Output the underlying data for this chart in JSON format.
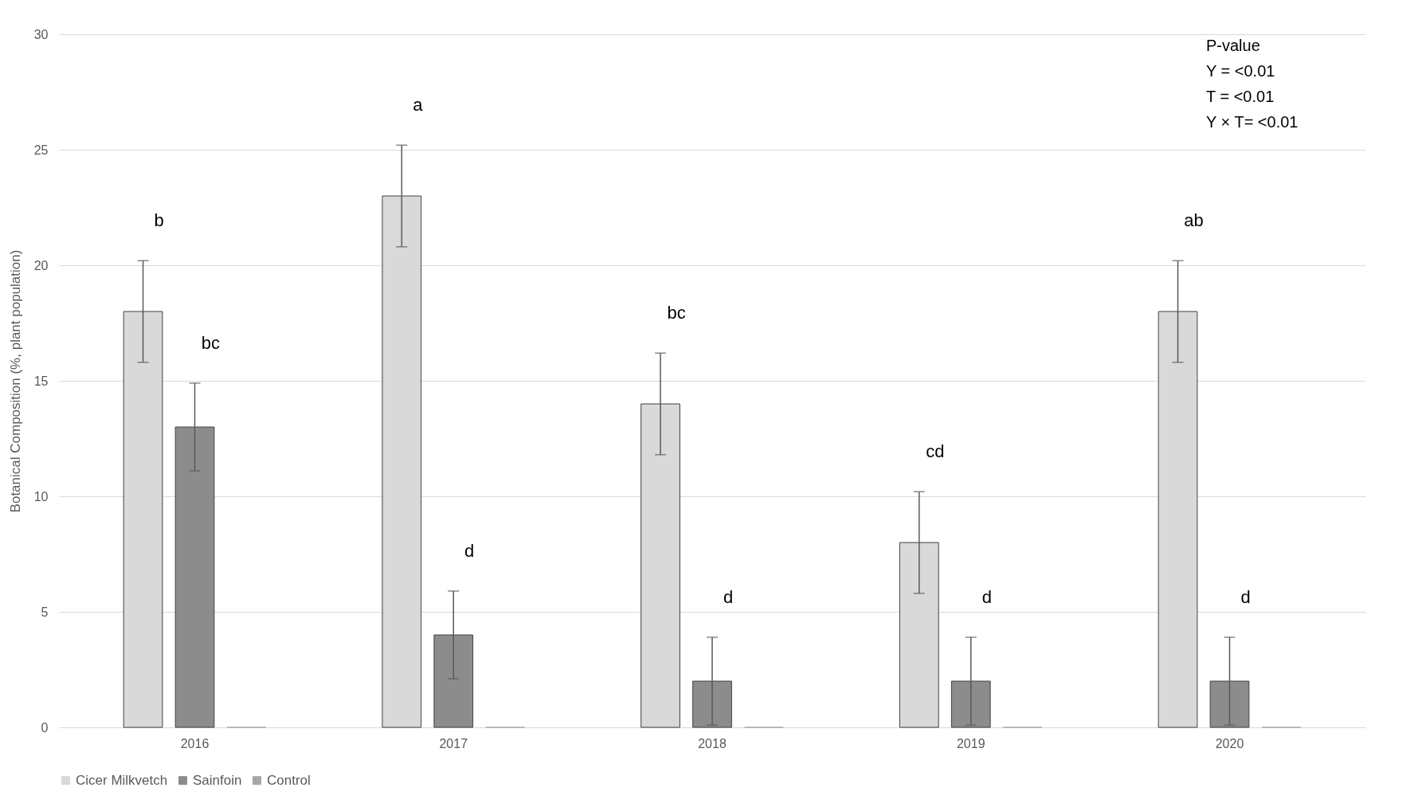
{
  "chart_data": {
    "type": "bar",
    "ylabel": "Botanical Composition (%, plant population)",
    "categories": [
      "2016",
      "2017",
      "2018",
      "2019",
      "2020"
    ],
    "series": [
      {
        "name": "Cicer Milkvetch",
        "color": "#d9d9d9",
        "values": [
          18,
          23,
          14,
          8,
          18
        ],
        "errors": [
          2.2,
          2.2,
          2.2,
          2.2,
          2.2
        ]
      },
      {
        "name": "Sainfoin",
        "color": "#8c8c8c",
        "values": [
          13,
          4,
          2,
          2,
          2
        ],
        "errors": [
          1.9,
          1.9,
          1.9,
          1.9,
          1.9
        ]
      },
      {
        "name": "Control",
        "color": "#a6a6a6",
        "values": [
          0,
          0,
          0,
          0,
          0
        ]
      }
    ],
    "ylim": [
      0,
      30
    ],
    "yticks": [
      0,
      5,
      10,
      15,
      20,
      25,
      30
    ],
    "grid": "y",
    "legend": "bottom",
    "annotations": [
      "b",
      "bc",
      "a",
      "d",
      "bc",
      "d",
      "cd",
      "d",
      "ab",
      "d",
      "P-value",
      "Y = <0.01",
      "T = <0.01",
      "Y × T= <0.01"
    ]
  }
}
